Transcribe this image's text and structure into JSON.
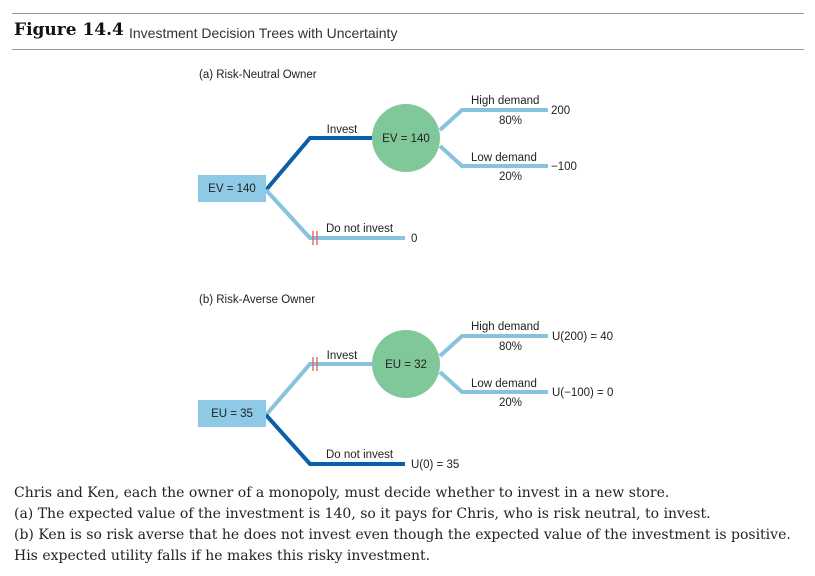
{
  "figure": {
    "label": "Figure 14.4",
    "title": "Investment Decision Trees with Uncertainty"
  },
  "colors": {
    "chosen_branch": "#0b5ea8",
    "other_branch": "#87c2df",
    "decision_box": "#8ecae6",
    "chance_node": "#80c79a",
    "pruned_mark": "#e05b5b"
  },
  "panel_a": {
    "heading": "(a) Risk-Neutral Owner",
    "decision_value": "EV = 140",
    "chance_value": "EV = 140",
    "invest_label": "Invest",
    "not_invest_label": "Do not invest",
    "not_invest_payoff": "0",
    "high_label": "High demand",
    "high_prob": "80%",
    "high_payoff": "200",
    "low_label": "Low demand",
    "low_prob": "20%",
    "low_payoff": "−100"
  },
  "panel_b": {
    "heading": "(b) Risk-Averse Owner",
    "decision_value": "EU = 35",
    "chance_value": "EU = 32",
    "invest_label": "Invest",
    "not_invest_label": "Do not invest",
    "not_invest_payoff": "U(0) = 35",
    "high_label": "High demand",
    "high_prob": "80%",
    "high_payoff": "U(200) = 40",
    "low_label": "Low demand",
    "low_prob": "20%",
    "low_payoff": "U(−100) = 0"
  },
  "caption": [
    "Chris and Ken, each the owner of a monopoly, must decide whether to invest in a new store.",
    "(a) The expected value of the investment is 140, so it pays for Chris, who is risk neutral, to invest.",
    "(b) Ken is so risk averse that he does not invest even though the expected value of the investment is positive.",
    "His expected utility falls if he makes this risky investment."
  ]
}
